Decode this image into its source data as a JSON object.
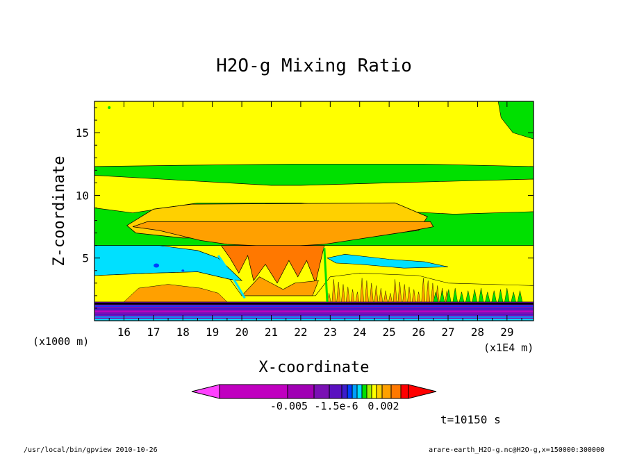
{
  "chart_data": {
    "type": "heatmap",
    "title": "H2O-g Mixing Ratio",
    "xlabel": "X-coordinate",
    "ylabel": "Z-coordinate",
    "x_unit_label": "(x1E4 m)",
    "y_unit_label": "(x1000 m)",
    "x_ticks": [
      "16",
      "17",
      "18",
      "19",
      "20",
      "21",
      "22",
      "23",
      "24",
      "25",
      "26",
      "27",
      "28",
      "29"
    ],
    "y_ticks": [
      "5",
      "10",
      "15"
    ],
    "xlim": [
      15.0,
      29.9
    ],
    "ylim": [
      0.0,
      17.5
    ],
    "colorbar_labels": [
      "-0.005",
      "-1.5e-6",
      "0.002"
    ],
    "colorbar_colors": [
      "#ff40ff",
      "#c000c0",
      "#a000b4",
      "#7a10b4",
      "#5a10c0",
      "#3c1ccc",
      "#0040ff",
      "#00a0ff",
      "#00e0ff",
      "#00e000",
      "#a0f000",
      "#ffff00",
      "#ffd000",
      "#ffa000",
      "#ff7800",
      "#ff0000"
    ],
    "annotation_time": "t=10150 s",
    "footer_left": "/usr/local/bin/gpview  2010-10-26",
    "footer_right": "arare-earth_H2O-g.nc@H2O-g,x=150000:300000",
    "layers": [
      {
        "name": "upper-yellow",
        "color": "#ffff00",
        "x": [
          15.0,
          29.9
        ],
        "z": [
          12.2,
          17.5
        ]
      },
      {
        "name": "mid-green",
        "color": "#00e000",
        "x": [
          15.0,
          29.9
        ],
        "z": [
          6.0,
          12.3
        ]
      },
      {
        "name": "middle-yellow",
        "color": "#ffff00",
        "x": [
          15.0,
          29.9
        ],
        "z": [
          9.4,
          11.6
        ]
      },
      {
        "name": "anvil-yellow-orange",
        "color": "#ffd000",
        "x": [
          16.1,
          26.0
        ],
        "z": [
          6.7,
          9.3
        ]
      },
      {
        "name": "anvil-orange",
        "color": "#ffa000",
        "x": [
          16.3,
          26.5
        ],
        "z": [
          6.0,
          7.9
        ]
      },
      {
        "name": "core-dark-orange",
        "color": "#ff7800",
        "x": [
          20.0,
          22.3
        ],
        "z": [
          2.0,
          6.0
        ]
      },
      {
        "name": "cyan-band",
        "color": "#00e0ff",
        "x": [
          15.0,
          20.0
        ],
        "z": [
          3.6,
          6.0
        ]
      },
      {
        "name": "lower-yellow",
        "color": "#ffff00",
        "x": [
          15.0,
          29.9
        ],
        "z": [
          1.5,
          3.6
        ]
      },
      {
        "name": "surface-purple",
        "color": "#7a10b4",
        "x": [
          15.0,
          29.9
        ],
        "z": [
          0.0,
          1.5
        ]
      }
    ]
  }
}
